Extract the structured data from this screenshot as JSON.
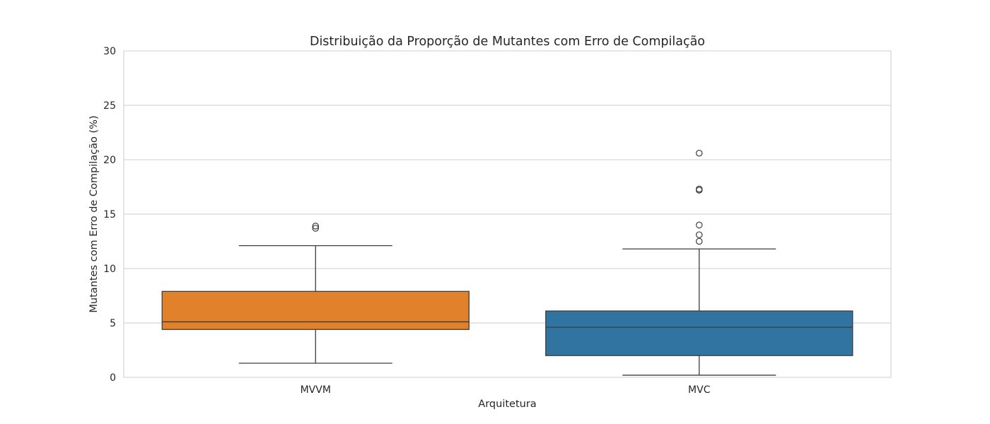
{
  "chart_data": {
    "type": "box",
    "title": "Distribuição da Proporção de Mutantes com Erro de Compilação",
    "xlabel": "Arquitetura",
    "ylabel": "Mutantes com Erro de Compilação (%)",
    "ylim": [
      0,
      30
    ],
    "yticks": [
      0,
      5,
      10,
      15,
      20,
      25,
      30
    ],
    "grid": true,
    "categories": [
      "MVVM",
      "MVC"
    ],
    "boxes": [
      {
        "category": "MVVM",
        "color": "#e1812c",
        "whisker_low": 1.3,
        "q1": 4.4,
        "median": 5.1,
        "q3": 7.9,
        "whisker_high": 12.1,
        "outliers": [
          13.7,
          13.9
        ]
      },
      {
        "category": "MVC",
        "color": "#3274a1",
        "whisker_low": 0.2,
        "q1": 2.0,
        "median": 4.6,
        "q3": 6.1,
        "whisker_high": 11.8,
        "outliers": [
          12.5,
          13.1,
          14.0,
          17.2,
          17.3,
          20.6
        ]
      }
    ]
  }
}
